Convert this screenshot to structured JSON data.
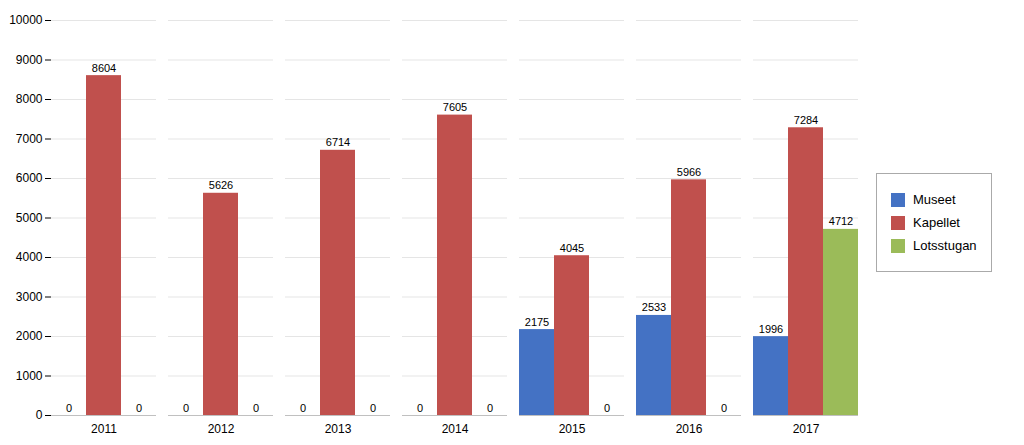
{
  "chart_data": {
    "type": "bar",
    "categories": [
      "2011",
      "2012",
      "2013",
      "2014",
      "2015",
      "2016",
      "2017"
    ],
    "series": [
      {
        "name": "Museet",
        "color": "#4472C4",
        "values": [
          0,
          0,
          0,
          0,
          2175,
          2533,
          1996
        ]
      },
      {
        "name": "Kapellet",
        "color": "#C0504D",
        "values": [
          8604,
          5626,
          6714,
          7605,
          4045,
          5966,
          7284
        ]
      },
      {
        "name": "Lotsstugan",
        "color": "#9BBB59",
        "values": [
          0,
          0,
          0,
          0,
          0,
          0,
          4712
        ]
      }
    ],
    "ylim": [
      0,
      10000
    ],
    "yticks": [
      0,
      1000,
      2000,
      3000,
      4000,
      5000,
      6000,
      7000,
      8000,
      9000,
      10000
    ],
    "grid": true,
    "data_labels": true,
    "legend": "right"
  }
}
